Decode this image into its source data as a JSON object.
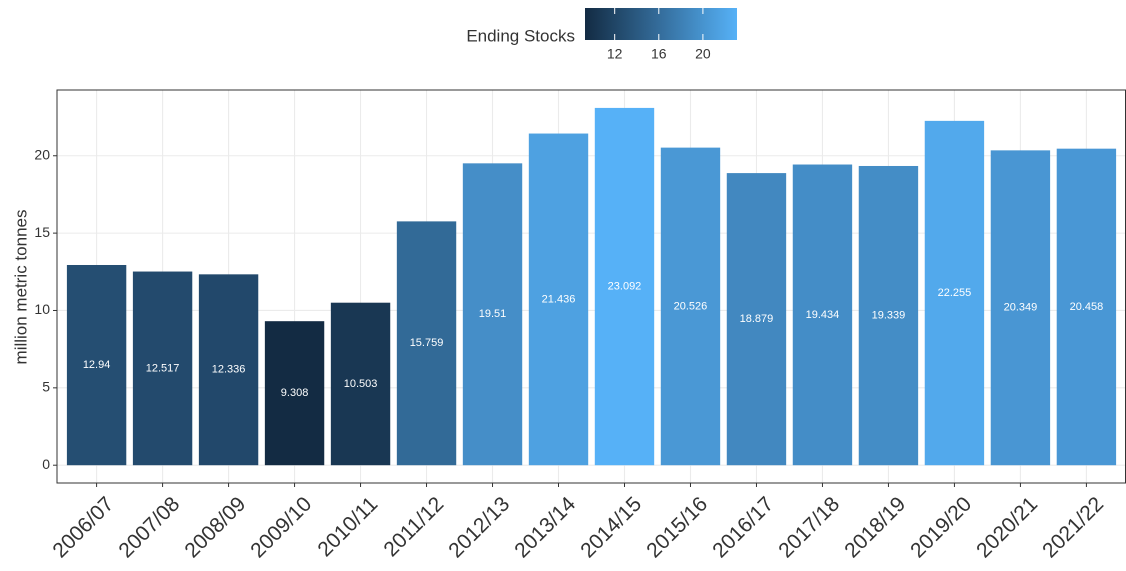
{
  "chart_data": {
    "type": "bar",
    "y_label": "million metric tonnes",
    "legend_title": "Ending Stocks",
    "legend_ticks": [
      12,
      16,
      20
    ],
    "color_low": "#132B43",
    "color_high": "#56B1F7",
    "categories": [
      "2006/07",
      "2007/08",
      "2008/09",
      "2009/10",
      "2010/11",
      "2011/12",
      "2012/13",
      "2013/14",
      "2014/15",
      "2015/16",
      "2016/17",
      "2017/18",
      "2018/19",
      "2019/20",
      "2020/21",
      "2021/22"
    ],
    "values": [
      12.94,
      12.517,
      12.336,
      9.308,
      10.503,
      15.759,
      19.51,
      21.436,
      23.092,
      20.526,
      18.879,
      19.434,
      19.339,
      22.255,
      20.349,
      20.458
    ],
    "ylim": [
      -1.15,
      24.25
    ],
    "yticks": [
      0,
      5,
      10,
      15,
      20
    ],
    "grid": true
  }
}
